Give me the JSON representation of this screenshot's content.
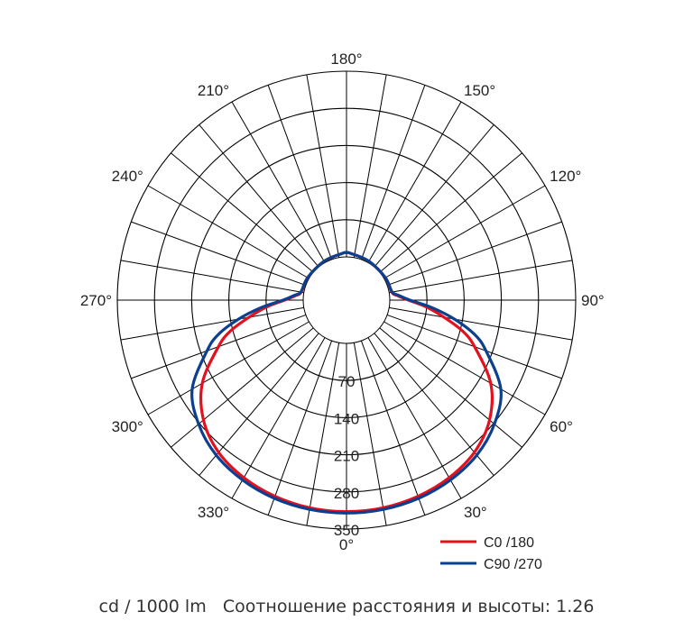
{
  "chart_data": {
    "type": "polar-line",
    "unit": "cd / 1000 lm",
    "angle_labels": [
      {
        "angle": 180,
        "text": "180°"
      },
      {
        "angle": 210,
        "text": "210°"
      },
      {
        "angle": 150,
        "text": "150°"
      },
      {
        "angle": 240,
        "text": "240°"
      },
      {
        "angle": 120,
        "text": "120°"
      },
      {
        "angle": 270,
        "text": "270°"
      },
      {
        "angle": 90,
        "text": "90°"
      },
      {
        "angle": 300,
        "text": "300°"
      },
      {
        "angle": 60,
        "text": "60°"
      },
      {
        "angle": 330,
        "text": "330°"
      },
      {
        "angle": 30,
        "text": "30°"
      },
      {
        "angle": 0,
        "text": "0°"
      }
    ],
    "radial_ticks": [
      70,
      140,
      210,
      280,
      350
    ],
    "r_max": 350,
    "spoke_step_deg": 10,
    "series": [
      {
        "name": "C0 /180",
        "color": "#e3101e",
        "points": [
          [
            0,
            317
          ],
          [
            10,
            316
          ],
          [
            20,
            312
          ],
          [
            30,
            305
          ],
          [
            40,
            293
          ],
          [
            50,
            270
          ],
          [
            60,
            232
          ],
          [
            70,
            175
          ],
          [
            75,
            145
          ],
          [
            80,
            105
          ],
          [
            85,
            70
          ],
          [
            90,
            35
          ],
          [
            95,
            15
          ],
          [
            100,
            5
          ],
          [
            120,
            3
          ],
          [
            150,
            3
          ],
          [
            175,
            7
          ],
          [
            180,
            8
          ]
        ]
      },
      {
        "name": "C90 /270",
        "color": "#0b3f8f",
        "points": [
          [
            0,
            320
          ],
          [
            10,
            319
          ],
          [
            20,
            316
          ],
          [
            30,
            310
          ],
          [
            40,
            300
          ],
          [
            50,
            282
          ],
          [
            60,
            254
          ],
          [
            70,
            198
          ],
          [
            75,
            168
          ],
          [
            80,
            125
          ],
          [
            85,
            80
          ],
          [
            90,
            38
          ],
          [
            95,
            18
          ],
          [
            100,
            6
          ],
          [
            120,
            3
          ],
          [
            150,
            3
          ],
          [
            175,
            7
          ],
          [
            180,
            8
          ]
        ]
      }
    ]
  },
  "caption": {
    "unit_text": "cd / 1000 lm",
    "ratio_text": "Соотношение расстояния и высоты: 1.26"
  }
}
